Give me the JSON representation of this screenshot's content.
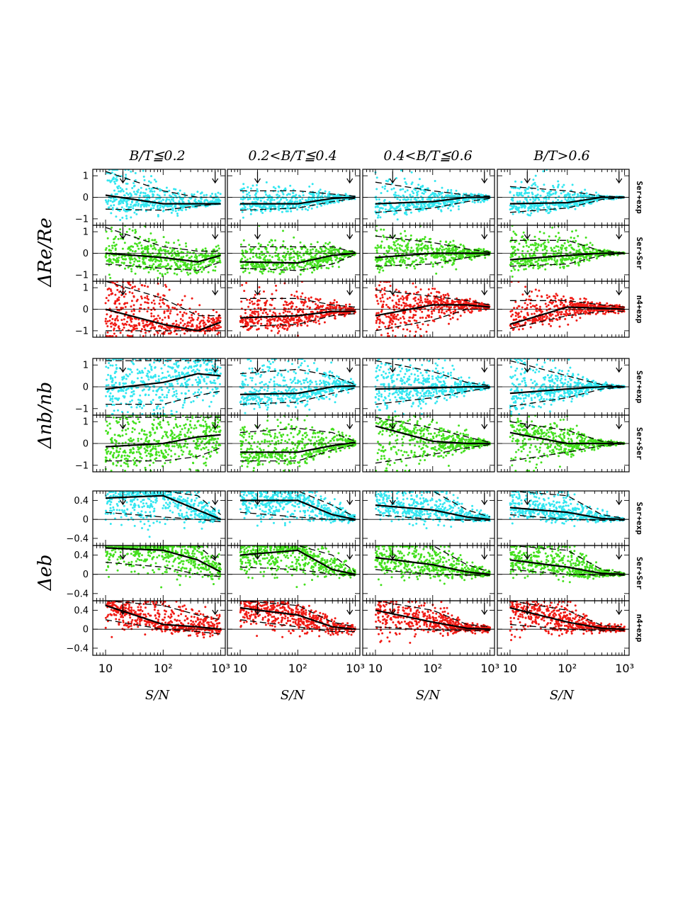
{
  "figure": {
    "column_titles": [
      "B/T≦0.2",
      "0.2<B/T≦0.4",
      "0.4<B/T≦0.6",
      "B/T>0.6"
    ],
    "xlabel": "S/N",
    "xticks": [
      "10",
      "10²",
      "10³"
    ],
    "groups": [
      {
        "ylabel": "ΔRe/Re",
        "row_labels": [
          "Ser+exp",
          "Ser+Ser",
          "n4+exp"
        ]
      },
      {
        "ylabel": "Δnb/nb",
        "row_labels": [
          "Ser+exp",
          "Ser+Ser"
        ]
      },
      {
        "ylabel": "Δeb",
        "row_labels": [
          "Ser+exp",
          "Ser+Ser",
          "n4+exp"
        ]
      }
    ],
    "colors": {
      "Ser+exp": "#33e6f0",
      "Ser+Ser": "#44e01e",
      "n4+exp": "#f01a14"
    }
  },
  "chart_data": {
    "type": "scatter",
    "x_scale": "log",
    "xlim": [
      6,
      1200
    ],
    "arrow_markers_x": [
      20,
      800
    ],
    "panel_grid": {
      "rows": 8,
      "cols": 4
    },
    "rows": [
      {
        "quantity": "ΔRe/Re",
        "model": "Ser+exp",
        "ylim": [
          -1.3,
          1.3
        ],
        "yticks": [
          1,
          0,
          -1
        ],
        "ytick_labels": [
          "1",
          "0",
          "−1"
        ],
        "median": [
          [
            0.1,
            -0.3,
            -0.3,
            -0.3
          ],
          [
            -0.3,
            -0.3,
            -0.05,
            0.0
          ],
          [
            -0.3,
            -0.2,
            0.0,
            0.0
          ],
          [
            -0.3,
            -0.25,
            0.0,
            0.0
          ]
        ],
        "upper": [
          [
            1.2,
            0.3,
            0.0,
            0.0
          ],
          [
            0.3,
            0.3,
            0.15,
            0.05
          ],
          [
            0.7,
            0.3,
            0.1,
            0.05
          ],
          [
            0.5,
            0.3,
            0.05,
            0.02
          ]
        ],
        "lower": [
          [
            -0.55,
            -0.6,
            -0.4,
            -0.3
          ],
          [
            -0.6,
            -0.5,
            -0.2,
            -0.05
          ],
          [
            -0.7,
            -0.5,
            -0.2,
            -0.05
          ],
          [
            -0.7,
            -0.5,
            -0.1,
            -0.02
          ]
        ]
      },
      {
        "quantity": "ΔRe/Re",
        "model": "Ser+Ser",
        "ylim": [
          -1.3,
          1.3
        ],
        "yticks": [
          1,
          0,
          -1
        ],
        "ytick_labels": [
          "1",
          "0",
          "−1"
        ],
        "median": [
          [
            0.0,
            -0.2,
            -0.4,
            -0.1
          ],
          [
            -0.4,
            -0.45,
            -0.1,
            0.0
          ],
          [
            -0.2,
            0.0,
            0.0,
            0.0
          ],
          [
            -0.3,
            -0.1,
            0.0,
            0.0
          ]
        ],
        "upper": [
          [
            1.2,
            0.3,
            0.1,
            0.1
          ],
          [
            0.3,
            0.3,
            0.3,
            0.05
          ],
          [
            0.8,
            0.5,
            0.2,
            0.05
          ],
          [
            0.6,
            0.6,
            0.1,
            0.02
          ]
        ],
        "lower": [
          [
            -0.5,
            -0.7,
            -0.8,
            -0.4
          ],
          [
            -0.7,
            -0.8,
            -0.5,
            -0.05
          ],
          [
            -0.6,
            -0.5,
            -0.2,
            -0.05
          ],
          [
            -0.6,
            -0.5,
            -0.1,
            -0.02
          ]
        ]
      },
      {
        "quantity": "ΔRe/Re",
        "model": "n4+exp",
        "ylim": [
          -1.3,
          1.3
        ],
        "yticks": [
          1,
          0,
          -1
        ],
        "ytick_labels": [
          "1",
          "0",
          "−1"
        ],
        "median": [
          [
            0.0,
            -0.7,
            -1.0,
            -0.6
          ],
          [
            -0.4,
            -0.3,
            -0.1,
            -0.1
          ],
          [
            -0.3,
            0.2,
            0.2,
            0.1
          ],
          [
            -0.7,
            0.1,
            0.05,
            0.0
          ]
        ],
        "upper": [
          [
            1.3,
            0.5,
            -0.3,
            -0.3
          ],
          [
            0.5,
            0.5,
            0.2,
            0.1
          ],
          [
            0.9,
            0.6,
            0.4,
            0.2
          ],
          [
            0.4,
            0.4,
            0.2,
            0.1
          ]
        ],
        "lower": [
          [
            -1.0,
            -1.0,
            -1.0,
            -1.0
          ],
          [
            -0.8,
            -0.7,
            -0.3,
            -0.2
          ],
          [
            -1.0,
            -0.5,
            0.0,
            0.0
          ],
          [
            -0.9,
            -0.3,
            -0.1,
            -0.1
          ]
        ]
      },
      {
        "quantity": "Δnb/nb",
        "model": "Ser+exp",
        "ylim": [
          -1.3,
          1.3
        ],
        "yticks": [
          1,
          0,
          -1
        ],
        "ytick_labels": [
          "1",
          "0",
          "−1"
        ],
        "median": [
          [
            -0.1,
            0.2,
            0.6,
            0.5
          ],
          [
            -0.35,
            -0.3,
            0.0,
            0.05
          ],
          [
            -0.1,
            -0.05,
            0.0,
            0.0
          ],
          [
            -0.3,
            -0.1,
            0.0,
            0.0
          ]
        ],
        "upper": [
          [
            1.2,
            1.2,
            1.2,
            1.2
          ],
          [
            0.6,
            0.8,
            0.5,
            0.1
          ],
          [
            1.2,
            0.7,
            0.2,
            0.05
          ],
          [
            1.2,
            0.5,
            0.1,
            0.02
          ]
        ],
        "lower": [
          [
            -0.8,
            -0.8,
            -0.4,
            -0.2
          ],
          [
            -0.8,
            -0.7,
            -0.3,
            -0.05
          ],
          [
            -0.8,
            -0.5,
            -0.2,
            -0.05
          ],
          [
            -0.9,
            -0.5,
            -0.1,
            -0.02
          ]
        ]
      },
      {
        "quantity": "Δnb/nb",
        "model": "Ser+Ser",
        "ylim": [
          -1.3,
          1.3
        ],
        "yticks": [
          1,
          0,
          -1
        ],
        "ytick_labels": [
          "1",
          "0",
          "−1"
        ],
        "median": [
          [
            -0.15,
            0.0,
            0.3,
            0.4
          ],
          [
            -0.4,
            -0.4,
            -0.1,
            0.05
          ],
          [
            0.8,
            0.1,
            0.0,
            0.0
          ],
          [
            0.5,
            0.0,
            0.0,
            0.0
          ]
        ],
        "upper": [
          [
            1.2,
            1.2,
            1.2,
            1.2
          ],
          [
            0.5,
            0.7,
            0.5,
            0.1
          ],
          [
            1.2,
            0.7,
            0.3,
            0.05
          ],
          [
            1.0,
            0.6,
            0.1,
            0.02
          ]
        ],
        "lower": [
          [
            -0.8,
            -0.8,
            -0.6,
            -0.2
          ],
          [
            -0.8,
            -0.8,
            -0.3,
            -0.05
          ],
          [
            -0.9,
            -0.5,
            -0.2,
            -0.05
          ],
          [
            -0.8,
            -0.4,
            -0.1,
            -0.02
          ]
        ]
      },
      {
        "quantity": "Δeb",
        "model": "Ser+exp",
        "ylim": [
          -0.55,
          0.6
        ],
        "yticks": [
          0.4,
          0,
          -0.4
        ],
        "ytick_labels": [
          "0.4",
          "0",
          "−0.4"
        ],
        "median": [
          [
            0.45,
            0.5,
            0.2,
            0.0
          ],
          [
            0.4,
            0.4,
            0.1,
            0.0
          ],
          [
            0.3,
            0.2,
            0.05,
            0.0
          ],
          [
            0.25,
            0.15,
            0.02,
            0.0
          ]
        ],
        "upper": [
          [
            0.6,
            0.6,
            0.5,
            0.1
          ],
          [
            0.6,
            0.6,
            0.3,
            0.05
          ],
          [
            0.6,
            0.6,
            0.2,
            0.05
          ],
          [
            0.6,
            0.5,
            0.1,
            0.02
          ]
        ],
        "lower": [
          [
            0.15,
            0.05,
            0.0,
            -0.05
          ],
          [
            0.15,
            0.05,
            0.0,
            -0.02
          ],
          [
            0.1,
            0.0,
            -0.02,
            -0.02
          ],
          [
            0.1,
            0.0,
            -0.02,
            -0.02
          ]
        ]
      },
      {
        "quantity": "Δeb",
        "model": "Ser+Ser",
        "ylim": [
          -0.55,
          0.6
        ],
        "yticks": [
          0.4,
          0,
          -0.4
        ],
        "ytick_labels": [
          "0.4",
          "0",
          "−0.4"
        ],
        "median": [
          [
            0.55,
            0.5,
            0.3,
            0.05
          ],
          [
            0.4,
            0.5,
            0.1,
            0.0
          ],
          [
            0.35,
            0.2,
            0.05,
            0.0
          ],
          [
            0.3,
            0.15,
            0.02,
            0.0
          ]
        ],
        "upper": [
          [
            0.6,
            0.6,
            0.6,
            0.2
          ],
          [
            0.6,
            0.6,
            0.4,
            0.05
          ],
          [
            0.6,
            0.6,
            0.2,
            0.05
          ],
          [
            0.6,
            0.5,
            0.1,
            0.02
          ]
        ],
        "lower": [
          [
            0.25,
            0.15,
            0.0,
            -0.05
          ],
          [
            0.15,
            0.1,
            0.0,
            -0.02
          ],
          [
            0.1,
            0.0,
            -0.02,
            -0.02
          ],
          [
            0.1,
            0.0,
            -0.02,
            -0.02
          ]
        ]
      },
      {
        "quantity": "Δeb",
        "model": "n4+exp",
        "ylim": [
          -0.55,
          0.6
        ],
        "yticks": [
          0.4,
          0,
          -0.4
        ],
        "ytick_labels": [
          "0.4",
          "0",
          "−0.4"
        ],
        "median": [
          [
            0.5,
            0.1,
            0.05,
            0.0
          ],
          [
            0.45,
            0.3,
            0.05,
            0.0
          ],
          [
            0.4,
            0.15,
            0.02,
            0.0
          ],
          [
            0.45,
            0.15,
            0.02,
            0.0
          ]
        ],
        "upper": [
          [
            0.6,
            0.5,
            0.3,
            0.2
          ],
          [
            0.6,
            0.5,
            0.15,
            0.05
          ],
          [
            0.6,
            0.4,
            0.1,
            0.05
          ],
          [
            0.6,
            0.4,
            0.08,
            0.05
          ]
        ],
        "lower": [
          [
            0.2,
            0.0,
            -0.05,
            -0.1
          ],
          [
            0.2,
            0.05,
            -0.05,
            -0.05
          ],
          [
            0.05,
            -0.02,
            -0.03,
            -0.03
          ],
          [
            0.1,
            0.0,
            -0.03,
            -0.03
          ]
        ]
      }
    ]
  }
}
